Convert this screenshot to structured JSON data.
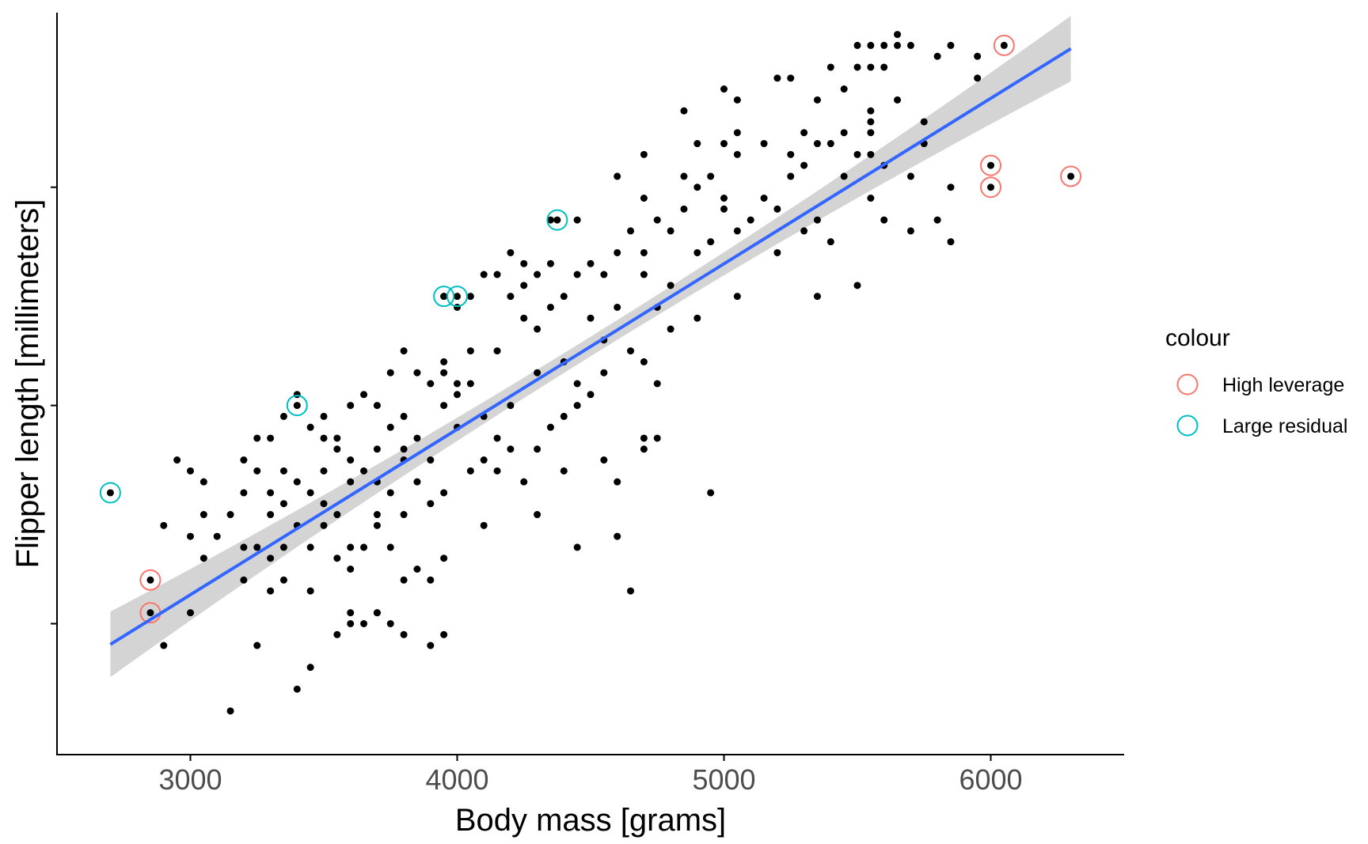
{
  "chart_data": {
    "type": "scatter",
    "title": "",
    "xlabel": "Body mass [grams]",
    "ylabel": "Flipper length [millimeters]",
    "xlim": [
      2500,
      6500
    ],
    "ylim": [
      168,
      236
    ],
    "x_ticks": [
      3000,
      4000,
      5000,
      6000
    ],
    "x_tick_labels": [
      "3000",
      "4000",
      "5000",
      "6000"
    ],
    "y_ticks": [
      180,
      200,
      220
    ],
    "y_tick_labels": [
      "",
      "",
      ""
    ],
    "grid": false,
    "legend": {
      "title": "colour",
      "position": "right",
      "entries": [
        {
          "label": "High leverage",
          "color": "#F8766D"
        },
        {
          "label": "Large residual",
          "color": "#00BFC4"
        }
      ]
    },
    "fit_line": {
      "x": [
        2700,
        6300
      ],
      "y": [
        178.1,
        232.7
      ],
      "color": "#3366FF",
      "band_color": "#cccccc"
    },
    "points": [
      [
        3150,
        172
      ],
      [
        3400,
        174
      ],
      [
        3450,
        176
      ],
      [
        2900,
        178
      ],
      [
        3250,
        178
      ],
      [
        3900,
        178
      ],
      [
        3550,
        179
      ],
      [
        3800,
        179
      ],
      [
        3950,
        179
      ],
      [
        3600,
        180
      ],
      [
        3650,
        180
      ],
      [
        3750,
        180
      ],
      [
        3700,
        181
      ],
      [
        3000,
        181
      ],
      [
        3300,
        183
      ],
      [
        3600,
        181
      ],
      [
        3700,
        181
      ],
      [
        4650,
        183
      ],
      [
        3200,
        184
      ],
      [
        3350,
        184
      ],
      [
        3450,
        183
      ],
      [
        3600,
        185
      ],
      [
        3800,
        184
      ],
      [
        3900,
        184
      ],
      [
        3050,
        186
      ],
      [
        3300,
        186
      ],
      [
        3200,
        187
      ],
      [
        3250,
        187
      ],
      [
        3350,
        187
      ],
      [
        3450,
        187
      ],
      [
        3550,
        186
      ],
      [
        3600,
        187
      ],
      [
        3650,
        187
      ],
      [
        3750,
        187
      ],
      [
        3850,
        185
      ],
      [
        3950,
        186
      ],
      [
        4450,
        187
      ],
      [
        3100,
        188
      ],
      [
        3000,
        188
      ],
      [
        2900,
        189
      ],
      [
        3400,
        189
      ],
      [
        3500,
        189
      ],
      [
        3700,
        189
      ],
      [
        4100,
        189
      ],
      [
        4600,
        188
      ],
      [
        3050,
        190
      ],
      [
        3150,
        190
      ],
      [
        3300,
        190
      ],
      [
        3350,
        191
      ],
      [
        3500,
        191
      ],
      [
        3550,
        190
      ],
      [
        3700,
        190
      ],
      [
        3800,
        190
      ],
      [
        3900,
        191
      ],
      [
        4300,
        190
      ],
      [
        3200,
        192
      ],
      [
        3300,
        192
      ],
      [
        3400,
        193
      ],
      [
        3450,
        192
      ],
      [
        3600,
        193
      ],
      [
        3700,
        193
      ],
      [
        3750,
        192
      ],
      [
        3850,
        193
      ],
      [
        3950,
        192
      ],
      [
        4600,
        193
      ],
      [
        4950,
        192
      ],
      [
        3000,
        194
      ],
      [
        3050,
        193
      ],
      [
        3250,
        194
      ],
      [
        3350,
        194
      ],
      [
        3500,
        194
      ],
      [
        3650,
        194
      ],
      [
        3800,
        195
      ],
      [
        4050,
        194
      ],
      [
        4150,
        194
      ],
      [
        4250,
        193
      ],
      [
        4400,
        194
      ],
      [
        4550,
        195
      ],
      [
        2950,
        195
      ],
      [
        3200,
        195
      ],
      [
        3550,
        196
      ],
      [
        3600,
        195
      ],
      [
        3700,
        196
      ],
      [
        3800,
        196
      ],
      [
        3900,
        195
      ],
      [
        4100,
        195
      ],
      [
        4200,
        196
      ],
      [
        4300,
        196
      ],
      [
        4700,
        196
      ],
      [
        3250,
        197
      ],
      [
        3300,
        197
      ],
      [
        3450,
        198
      ],
      [
        3500,
        197
      ],
      [
        3550,
        197
      ],
      [
        3750,
        198
      ],
      [
        3850,
        197
      ],
      [
        4000,
        198
      ],
      [
        4150,
        197
      ],
      [
        4350,
        198
      ],
      [
        4700,
        197
      ],
      [
        4750,
        197
      ],
      [
        3350,
        199
      ],
      [
        3500,
        199
      ],
      [
        3600,
        200
      ],
      [
        3700,
        200
      ],
      [
        3800,
        199
      ],
      [
        3950,
        200
      ],
      [
        4100,
        199
      ],
      [
        4200,
        200
      ],
      [
        4400,
        199
      ],
      [
        4450,
        200
      ],
      [
        3400,
        201
      ],
      [
        3650,
        201
      ],
      [
        3900,
        202
      ],
      [
        4000,
        201
      ],
      [
        4050,
        202
      ],
      [
        4450,
        202
      ],
      [
        4500,
        201
      ],
      [
        4750,
        202
      ],
      [
        3750,
        203
      ],
      [
        3850,
        203
      ],
      [
        3950,
        203
      ],
      [
        4000,
        202
      ],
      [
        4300,
        203
      ],
      [
        4550,
        203
      ],
      [
        3800,
        205
      ],
      [
        3950,
        204
      ],
      [
        4050,
        205
      ],
      [
        4150,
        205
      ],
      [
        4400,
        204
      ],
      [
        4700,
        204
      ],
      [
        4650,
        205
      ],
      [
        4550,
        206
      ],
      [
        4300,
        207
      ],
      [
        4500,
        208
      ],
      [
        4800,
        207
      ],
      [
        4000,
        209
      ],
      [
        4250,
        208
      ],
      [
        4900,
        208
      ],
      [
        3950,
        210
      ],
      [
        4050,
        210
      ],
      [
        4200,
        210
      ],
      [
        4350,
        209
      ],
      [
        4400,
        210
      ],
      [
        4600,
        209
      ],
      [
        4750,
        209
      ],
      [
        5050,
        210
      ],
      [
        5350,
        210
      ],
      [
        4100,
        212
      ],
      [
        4150,
        212
      ],
      [
        4250,
        211
      ],
      [
        4300,
        212
      ],
      [
        4450,
        212
      ],
      [
        4500,
        213
      ],
      [
        4550,
        212
      ],
      [
        4700,
        212
      ],
      [
        4800,
        211
      ],
      [
        5500,
        211
      ],
      [
        4200,
        214
      ],
      [
        4250,
        213
      ],
      [
        4350,
        213
      ],
      [
        4600,
        214
      ],
      [
        4700,
        214
      ],
      [
        4900,
        214
      ],
      [
        5200,
        214
      ],
      [
        5850,
        215
      ],
      [
        4650,
        216
      ],
      [
        4800,
        216
      ],
      [
        4950,
        215
      ],
      [
        5050,
        216
      ],
      [
        5300,
        216
      ],
      [
        5400,
        215
      ],
      [
        5700,
        216
      ],
      [
        4350,
        217
      ],
      [
        4450,
        217
      ],
      [
        4750,
        217
      ],
      [
        4850,
        218
      ],
      [
        5000,
        218
      ],
      [
        5100,
        217
      ],
      [
        5200,
        218
      ],
      [
        5350,
        217
      ],
      [
        5600,
        217
      ],
      [
        5800,
        217
      ],
      [
        4700,
        219
      ],
      [
        4900,
        220
      ],
      [
        5000,
        219
      ],
      [
        5150,
        219
      ],
      [
        5550,
        219
      ],
      [
        5850,
        220
      ],
      [
        4600,
        221
      ],
      [
        4850,
        221
      ],
      [
        4950,
        221
      ],
      [
        5250,
        221
      ],
      [
        5450,
        221
      ],
      [
        5700,
        221
      ],
      [
        5300,
        222
      ],
      [
        5600,
        222
      ],
      [
        4700,
        223
      ],
      [
        5050,
        223
      ],
      [
        5250,
        223
      ],
      [
        5500,
        223
      ],
      [
        5550,
        223
      ],
      [
        4900,
        224
      ],
      [
        5000,
        224
      ],
      [
        5150,
        224
      ],
      [
        5350,
        224
      ],
      [
        5400,
        224
      ],
      [
        5750,
        224
      ],
      [
        5050,
        225
      ],
      [
        5300,
        225
      ],
      [
        5450,
        225
      ],
      [
        5550,
        225
      ],
      [
        5550,
        226
      ],
      [
        5750,
        226
      ],
      [
        4850,
        227
      ],
      [
        5050,
        228
      ],
      [
        5350,
        228
      ],
      [
        5550,
        227
      ],
      [
        5650,
        228
      ],
      [
        5200,
        230
      ],
      [
        5000,
        229
      ],
      [
        5450,
        229
      ],
      [
        5250,
        230
      ],
      [
        5400,
        231
      ],
      [
        5500,
        231
      ],
      [
        5550,
        231
      ],
      [
        5600,
        231
      ],
      [
        5950,
        232
      ],
      [
        5500,
        233
      ],
      [
        5650,
        233
      ],
      [
        5700,
        233
      ],
      [
        5800,
        232
      ],
      [
        5850,
        233
      ],
      [
        5550,
        233
      ],
      [
        5600,
        233
      ],
      [
        5650,
        234
      ],
      [
        5950,
        230
      ],
      [
        6050,
        233
      ],
      [
        6000,
        222
      ],
      [
        6000,
        220
      ],
      [
        6300,
        221
      ],
      [
        2850,
        184
      ],
      [
        2850,
        181
      ],
      [
        2700,
        192
      ],
      [
        3400,
        200
      ],
      [
        3950,
        210
      ],
      [
        4000,
        210
      ],
      [
        4375,
        217
      ]
    ],
    "high_leverage": [
      [
        2850,
        184
      ],
      [
        2850,
        181
      ],
      [
        6050,
        233
      ],
      [
        6000,
        222
      ],
      [
        6000,
        220
      ],
      [
        6300,
        221
      ]
    ],
    "large_residual": [
      [
        2700,
        192
      ],
      [
        3400,
        200
      ],
      [
        3950,
        210
      ],
      [
        4000,
        210
      ],
      [
        4375,
        217
      ]
    ]
  }
}
